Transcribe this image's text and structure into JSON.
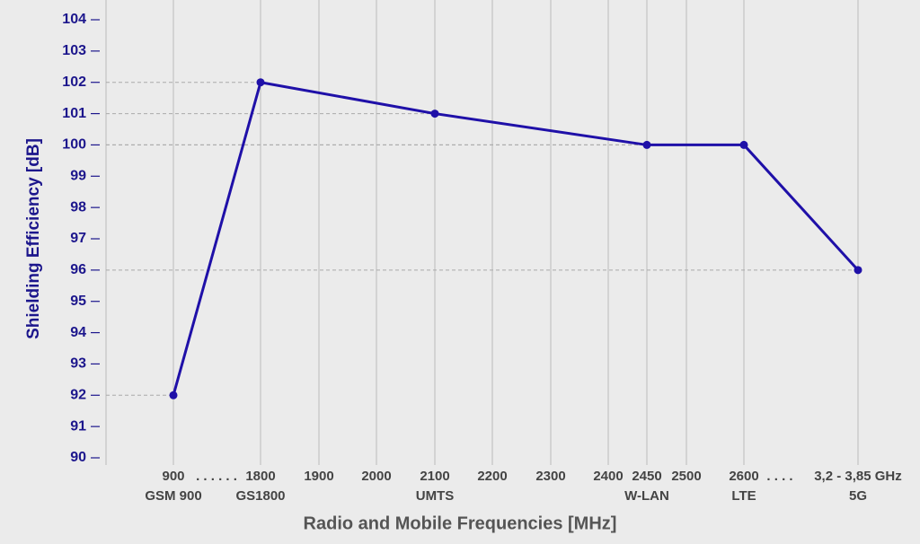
{
  "chart_data": {
    "type": "line",
    "ylabel": "Shielding Efficiency [dB]",
    "xlabel": "Radio and Mobile Frequencies [MHz]",
    "categories": [
      "900",
      "1800",
      "1900",
      "2000",
      "2100",
      "2200",
      "2300",
      "2400",
      "2450",
      "2500",
      "2600",
      "3,2 - 3,85 GHz"
    ],
    "sublabels": [
      "GSM 900",
      "GS1800",
      null,
      null,
      "UMTS",
      null,
      null,
      null,
      "W-LAN",
      null,
      "LTE",
      "5G"
    ],
    "separators": [
      ". . . . . .",
      ". . . ."
    ],
    "x": [
      "900",
      "1800",
      "2100",
      "2450",
      "2600",
      "3,2 - 3,85 GHz"
    ],
    "values": [
      92,
      102,
      101,
      100,
      100,
      96
    ],
    "color": "#1f10a8",
    "ylim": [
      90,
      104
    ],
    "yticks": [
      90,
      91,
      92,
      93,
      94,
      95,
      96,
      97,
      98,
      99,
      100,
      101,
      102,
      103,
      104
    ]
  }
}
